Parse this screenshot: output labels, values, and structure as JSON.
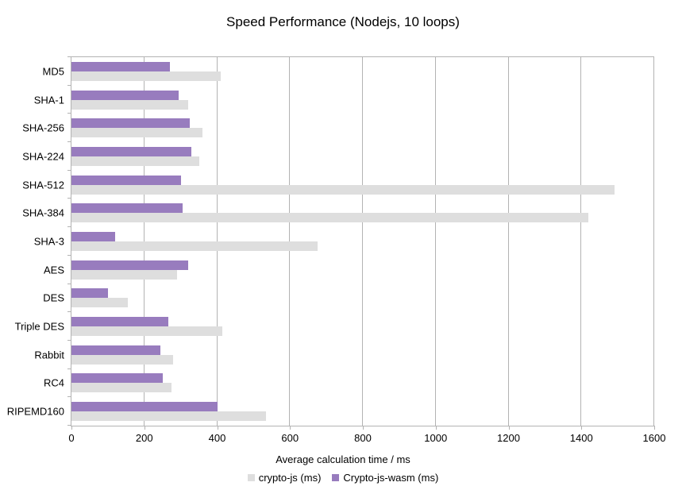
{
  "chart_data": {
    "type": "bar",
    "orientation": "horizontal",
    "title": "Speed Performance (Nodejs, 10 loops)",
    "xlabel": "Average calculation time / ms",
    "ylabel": "",
    "categories": [
      "MD5",
      "SHA-1",
      "SHA-256",
      "SHA-224",
      "SHA-512",
      "SHA-384",
      "SHA-3",
      "AES",
      "DES",
      "Triple DES",
      "Rabbit",
      "RC4",
      "RIPEMD160"
    ],
    "series": [
      {
        "name": "crypto-js (ms)",
        "color": "#dedede",
        "values": [
          410,
          320,
          360,
          350,
          1490,
          1420,
          675,
          290,
          155,
          415,
          280,
          275,
          535
        ]
      },
      {
        "name": "Crypto-js-wasm (ms)",
        "color": "#987cbe",
        "values": [
          270,
          295,
          325,
          330,
          300,
          305,
          120,
          320,
          100,
          265,
          245,
          250,
          400
        ]
      }
    ],
    "xlim": [
      0,
      1600
    ],
    "x_ticks": [
      0,
      200,
      400,
      600,
      800,
      1000,
      1200,
      1400,
      1600
    ],
    "grid": "vertical-only",
    "legend_position": "bottom",
    "axis_color": "#b3b3b3",
    "bar_stack_order": "wasm bar above crypto-js bar within each category"
  }
}
